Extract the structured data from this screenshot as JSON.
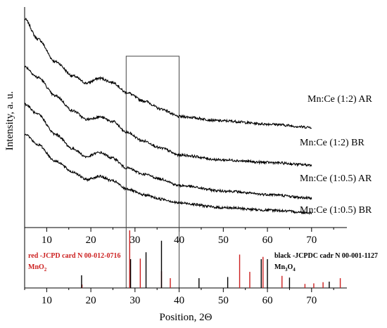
{
  "chart_data": [
    {
      "type": "line",
      "title": "",
      "xlabel": "",
      "ylabel": "Intensity, a. u.",
      "xlim": [
        5,
        78
      ],
      "x_ticks": [
        10,
        20,
        30,
        40,
        50,
        60,
        70
      ],
      "y_ticks": [],
      "grid": false,
      "legend": "none",
      "series": [
        {
          "name": "Mn:Ce (1:2) AR",
          "x": [
            5,
            8,
            12,
            16,
            19,
            22,
            25,
            28,
            32,
            36,
            40,
            50,
            60,
            70
          ],
          "y": [
            5.86,
            5.3,
            4.66,
            4.26,
            4.06,
            4.2,
            4.08,
            3.8,
            3.56,
            3.33,
            3.12,
            3.0,
            2.91,
            2.82
          ]
        },
        {
          "name": "Mn:Ce (1:2) BR",
          "x": [
            5,
            8,
            12,
            16,
            19,
            22,
            25,
            28,
            32,
            36,
            40,
            50,
            60,
            70
          ],
          "y": [
            4.52,
            4.22,
            3.7,
            3.28,
            3.04,
            3.11,
            2.98,
            2.68,
            2.43,
            2.23,
            2.04,
            1.9,
            1.83,
            1.76
          ]
        },
        {
          "name": "Mn:Ce (1:0.5) AR",
          "x": [
            5,
            8,
            12,
            16,
            19,
            22,
            25,
            28,
            32,
            36,
            40,
            50,
            60,
            70
          ],
          "y": [
            3.47,
            3.18,
            2.62,
            2.21,
            1.99,
            2.11,
            1.95,
            1.68,
            1.5,
            1.36,
            1.18,
            1.03,
            0.93,
            0.83
          ]
        },
        {
          "name": "Mn:Ce (1:0.5) BR",
          "x": [
            5,
            8,
            12,
            16,
            19,
            22,
            25,
            28,
            32,
            36,
            40,
            50,
            60,
            70
          ],
          "y": [
            2.64,
            2.33,
            1.87,
            1.56,
            1.35,
            1.44,
            1.31,
            1.09,
            0.92,
            0.8,
            0.69,
            0.56,
            0.49,
            0.42
          ]
        }
      ],
      "series_colors": [
        "#000000",
        "#000000",
        "#000000",
        "#000000"
      ],
      "annotations": [
        {
          "type": "zoom-box",
          "x_range": [
            28,
            40
          ],
          "color": "#000000"
        }
      ]
    },
    {
      "type": "bar",
      "title": "",
      "xlabel": "Position, 2Θ",
      "ylabel": "",
      "xlim": [
        5,
        78
      ],
      "x_ticks": [
        10,
        20,
        30,
        40,
        50,
        60,
        70
      ],
      "series": [
        {
          "name": "red -JCPD card N 00-012-0716",
          "formula": [
            "MnO",
            "2"
          ],
          "color": "#cc1f1f",
          "peaks": [
            {
              "x": 18.0,
              "h": 0.06
            },
            {
              "x": 28.8,
              "h": 1.0
            },
            {
              "x": 31.2,
              "h": 0.51
            },
            {
              "x": 36.0,
              "h": 0.29
            },
            {
              "x": 38.0,
              "h": 0.17
            },
            {
              "x": 53.7,
              "h": 0.58
            },
            {
              "x": 56.0,
              "h": 0.28
            },
            {
              "x": 59.0,
              "h": 0.54
            },
            {
              "x": 63.3,
              "h": 0.21
            },
            {
              "x": 68.5,
              "h": 0.07
            },
            {
              "x": 70.5,
              "h": 0.08
            },
            {
              "x": 72.6,
              "h": 0.1
            },
            {
              "x": 76.5,
              "h": 0.17
            }
          ]
        },
        {
          "name": "black -JCPDC cadr N 00-001-1127",
          "formula": [
            "Mn",
            "3",
            "O",
            "4"
          ],
          "color": "#000000",
          "peaks": [
            {
              "x": 17.9,
              "h": 0.22
            },
            {
              "x": 29.0,
              "h": 0.5
            },
            {
              "x": 32.5,
              "h": 0.62
            },
            {
              "x": 36.0,
              "h": 0.82
            },
            {
              "x": 44.5,
              "h": 0.17
            },
            {
              "x": 51.0,
              "h": 0.19
            },
            {
              "x": 58.6,
              "h": 0.5
            },
            {
              "x": 60.0,
              "h": 0.5
            },
            {
              "x": 65.0,
              "h": 0.18
            },
            {
              "x": 74.0,
              "h": 0.11
            }
          ]
        }
      ]
    }
  ]
}
